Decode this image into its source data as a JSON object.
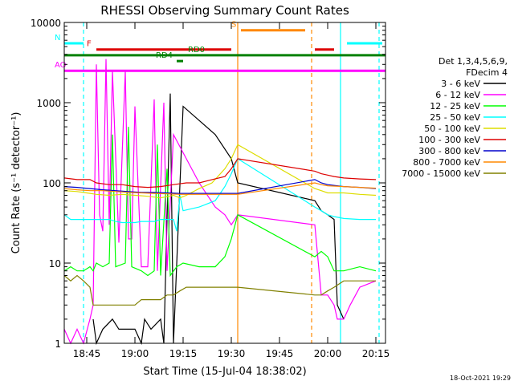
{
  "chart_data": {
    "type": "line",
    "title": "RHESSI Observing Summary Count Rates",
    "xlabel": "Start Time (15-Jul-04 18:38:02)",
    "ylabel": "Count Rate (s⁻¹ detector⁻¹)",
    "yscale": "log",
    "ylim": [
      1,
      10000
    ],
    "xlim_minutes": [
      38,
      138
    ],
    "x_ticks": [
      {
        "t": 45,
        "label": "18:45"
      },
      {
        "t": 60,
        "label": "19:00"
      },
      {
        "t": 75,
        "label": "19:15"
      },
      {
        "t": 90,
        "label": "19:30"
      },
      {
        "t": 105,
        "label": "19:45"
      },
      {
        "t": 120,
        "label": "20:00"
      },
      {
        "t": 135,
        "label": "20:15"
      }
    ],
    "y_ticks": [
      {
        "v": 1,
        "label": "1"
      },
      {
        "v": 10,
        "label": "10"
      },
      {
        "v": 100,
        "label": "100"
      },
      {
        "v": 1000,
        "label": "1000"
      },
      {
        "v": 10000,
        "label": "10000"
      }
    ],
    "legend": {
      "placement": "right",
      "header": [
        "Det 1,3,4,5,6,9,",
        "FDecim 4"
      ],
      "entries": [
        {
          "label": "3 - 6 keV",
          "color": "#000000"
        },
        {
          "label": "6 - 12 keV",
          "color": "#ff00ff"
        },
        {
          "label": "12 - 25 keV",
          "color": "#00ff00"
        },
        {
          "label": "25 - 50 keV",
          "color": "#00ffff"
        },
        {
          "label": "50 - 100 keV",
          "color": "#dddd00"
        },
        {
          "label": "100 - 300 keV",
          "color": "#dd0000"
        },
        {
          "label": "300 - 800 keV",
          "color": "#0000cc"
        },
        {
          "label": "800 - 7000 keV",
          "color": "#ff8800"
        },
        {
          "label": "7000 - 15000 keV",
          "color": "#808000"
        }
      ]
    },
    "series": [
      {
        "name": "3 - 6 keV",
        "color": "#000000",
        "points": [
          [
            47,
            2
          ],
          [
            48,
            1
          ],
          [
            50,
            1.5
          ],
          [
            53,
            2
          ],
          [
            55,
            1.5
          ],
          [
            57,
            1.5
          ],
          [
            60,
            1.5
          ],
          [
            62,
            1
          ],
          [
            63,
            2
          ],
          [
            65,
            1.5
          ],
          [
            68,
            2
          ],
          [
            69,
            1
          ],
          [
            71,
            1300
          ],
          [
            72,
            1
          ],
          [
            75,
            900
          ],
          [
            80,
            600
          ],
          [
            85,
            400
          ],
          [
            90,
            200
          ],
          [
            92,
            100
          ],
          [
            116,
            60
          ],
          [
            118,
            45
          ],
          [
            120,
            40
          ],
          [
            122,
            35
          ],
          [
            123,
            3
          ],
          [
            125,
            2
          ]
        ]
      },
      {
        "name": "6 - 12 keV",
        "color": "#ff00ff",
        "points": [
          [
            38,
            1.5
          ],
          [
            40,
            1
          ],
          [
            42,
            1.5
          ],
          [
            44,
            1
          ],
          [
            46,
            2
          ],
          [
            47,
            3
          ],
          [
            48,
            3000
          ],
          [
            49,
            40
          ],
          [
            50,
            25
          ],
          [
            51,
            3500
          ],
          [
            52,
            30
          ],
          [
            53,
            2500
          ],
          [
            55,
            18
          ],
          [
            57,
            2500
          ],
          [
            58,
            20
          ],
          [
            59,
            20
          ],
          [
            60,
            900
          ],
          [
            62,
            9
          ],
          [
            64,
            9
          ],
          [
            66,
            1100
          ],
          [
            67,
            8
          ],
          [
            69,
            1000
          ],
          [
            70,
            8
          ],
          [
            72,
            400
          ],
          [
            76,
            200
          ],
          [
            80,
            100
          ],
          [
            85,
            50
          ],
          [
            88,
            40
          ],
          [
            90,
            30
          ],
          [
            92,
            40
          ],
          [
            116,
            30
          ],
          [
            118,
            4
          ],
          [
            120,
            4
          ],
          [
            122,
            3
          ],
          [
            123,
            2
          ],
          [
            125,
            2
          ],
          [
            127,
            3
          ],
          [
            130,
            5
          ],
          [
            135,
            6
          ]
        ]
      },
      {
        "name": "12 - 25 keV",
        "color": "#00ff00",
        "points": [
          [
            38,
            8
          ],
          [
            40,
            9
          ],
          [
            42,
            8
          ],
          [
            44,
            8
          ],
          [
            46,
            9
          ],
          [
            47,
            8
          ],
          [
            48,
            10
          ],
          [
            50,
            9
          ],
          [
            52,
            10
          ],
          [
            53,
            400
          ],
          [
            54,
            9
          ],
          [
            57,
            10
          ],
          [
            58,
            500
          ],
          [
            59,
            9
          ],
          [
            62,
            8
          ],
          [
            64,
            7
          ],
          [
            66,
            8
          ],
          [
            67,
            300
          ],
          [
            68,
            7
          ],
          [
            70,
            150
          ],
          [
            71,
            7
          ],
          [
            73,
            9
          ],
          [
            75,
            10
          ],
          [
            80,
            9
          ],
          [
            85,
            9
          ],
          [
            88,
            12
          ],
          [
            90,
            20
          ],
          [
            92,
            40
          ],
          [
            116,
            12
          ],
          [
            118,
            14
          ],
          [
            120,
            12
          ],
          [
            122,
            8
          ],
          [
            125,
            8
          ],
          [
            130,
            9
          ],
          [
            135,
            8
          ]
        ]
      },
      {
        "name": "25 - 50 keV",
        "color": "#00ffff",
        "points": [
          [
            38,
            40
          ],
          [
            40,
            35
          ],
          [
            42,
            35
          ],
          [
            44,
            35
          ],
          [
            46,
            35
          ],
          [
            48,
            35
          ],
          [
            50,
            35
          ],
          [
            52,
            35
          ],
          [
            54,
            33
          ],
          [
            56,
            32
          ],
          [
            58,
            32
          ],
          [
            60,
            32
          ],
          [
            62,
            33
          ],
          [
            64,
            33
          ],
          [
            66,
            33
          ],
          [
            68,
            35
          ],
          [
            70,
            35
          ],
          [
            72,
            35
          ],
          [
            73,
            25
          ],
          [
            74,
            70
          ],
          [
            75,
            45
          ],
          [
            80,
            50
          ],
          [
            85,
            60
          ],
          [
            88,
            90
          ],
          [
            90,
            130
          ],
          [
            92,
            200
          ],
          [
            116,
            50
          ],
          [
            118,
            45
          ],
          [
            120,
            40
          ],
          [
            122,
            38
          ],
          [
            125,
            36
          ],
          [
            130,
            35
          ],
          [
            135,
            35
          ]
        ]
      },
      {
        "name": "50 - 100 keV",
        "color": "#dddd00",
        "points": [
          [
            38,
            80
          ],
          [
            42,
            78
          ],
          [
            45,
            75
          ],
          [
            48,
            72
          ],
          [
            52,
            70
          ],
          [
            56,
            72
          ],
          [
            60,
            70
          ],
          [
            64,
            68
          ],
          [
            68,
            65
          ],
          [
            72,
            70
          ],
          [
            74,
            65
          ],
          [
            76,
            70
          ],
          [
            80,
            85
          ],
          [
            84,
            100
          ],
          [
            88,
            150
          ],
          [
            90,
            200
          ],
          [
            92,
            300
          ],
          [
            116,
            85
          ],
          [
            118,
            80
          ],
          [
            120,
            75
          ],
          [
            125,
            75
          ],
          [
            130,
            72
          ],
          [
            135,
            70
          ]
        ]
      },
      {
        "name": "100 - 300 keV",
        "color": "#dd0000",
        "points": [
          [
            38,
            115
          ],
          [
            42,
            110
          ],
          [
            46,
            110
          ],
          [
            48,
            100
          ],
          [
            52,
            95
          ],
          [
            56,
            95
          ],
          [
            60,
            90
          ],
          [
            64,
            88
          ],
          [
            68,
            90
          ],
          [
            72,
            95
          ],
          [
            76,
            100
          ],
          [
            80,
            100
          ],
          [
            84,
            110
          ],
          [
            88,
            120
          ],
          [
            90,
            150
          ],
          [
            92,
            200
          ],
          [
            116,
            140
          ],
          [
            118,
            130
          ],
          [
            120,
            125
          ],
          [
            122,
            120
          ],
          [
            125,
            115
          ],
          [
            130,
            112
          ],
          [
            135,
            110
          ]
        ]
      },
      {
        "name": "300 - 800 keV",
        "color": "#0000cc",
        "points": [
          [
            38,
            90
          ],
          [
            42,
            88
          ],
          [
            46,
            85
          ],
          [
            50,
            82
          ],
          [
            54,
            80
          ],
          [
            58,
            78
          ],
          [
            62,
            76
          ],
          [
            66,
            76
          ],
          [
            70,
            75
          ],
          [
            74,
            74
          ],
          [
            78,
            74
          ],
          [
            82,
            74
          ],
          [
            86,
            74
          ],
          [
            90,
            74
          ],
          [
            92,
            74
          ],
          [
            116,
            110
          ],
          [
            118,
            100
          ],
          [
            120,
            95
          ],
          [
            125,
            90
          ],
          [
            130,
            88
          ],
          [
            135,
            85
          ]
        ]
      },
      {
        "name": "800 - 7000 keV",
        "color": "#ff8800",
        "points": [
          [
            38,
            85
          ],
          [
            42,
            82
          ],
          [
            46,
            80
          ],
          [
            50,
            80
          ],
          [
            54,
            78
          ],
          [
            58,
            76
          ],
          [
            62,
            75
          ],
          [
            66,
            74
          ],
          [
            70,
            73
          ],
          [
            74,
            72
          ],
          [
            78,
            72
          ],
          [
            82,
            72
          ],
          [
            86,
            72
          ],
          [
            90,
            72
          ],
          [
            92,
            72
          ],
          [
            116,
            100
          ],
          [
            118,
            95
          ],
          [
            120,
            92
          ],
          [
            125,
            90
          ],
          [
            130,
            88
          ],
          [
            135,
            86
          ]
        ]
      },
      {
        "name": "7000 - 15000 keV",
        "color": "#808000",
        "points": [
          [
            38,
            7
          ],
          [
            40,
            6
          ],
          [
            42,
            7
          ],
          [
            44,
            6
          ],
          [
            46,
            5
          ],
          [
            47,
            3
          ],
          [
            48,
            3
          ],
          [
            50,
            3
          ],
          [
            52,
            3
          ],
          [
            54,
            3
          ],
          [
            56,
            3
          ],
          [
            58,
            3
          ],
          [
            60,
            3
          ],
          [
            62,
            3.5
          ],
          [
            64,
            3.5
          ],
          [
            66,
            3.5
          ],
          [
            68,
            3.5
          ],
          [
            70,
            4
          ],
          [
            72,
            4
          ],
          [
            74,
            4.5
          ],
          [
            76,
            5
          ],
          [
            78,
            5
          ],
          [
            80,
            5
          ],
          [
            82,
            5
          ],
          [
            84,
            5
          ],
          [
            86,
            5
          ],
          [
            88,
            5
          ],
          [
            90,
            5
          ],
          [
            92,
            5
          ],
          [
            116,
            4
          ],
          [
            118,
            4
          ],
          [
            120,
            4.5
          ],
          [
            122,
            5
          ],
          [
            125,
            6
          ],
          [
            130,
            6
          ],
          [
            135,
            6
          ]
        ]
      }
    ],
    "annotations": [
      {
        "label": "N",
        "kind": "bar",
        "color": "#00ffff",
        "start": 38,
        "end": 44,
        "level": 5500
      },
      {
        "label": "",
        "kind": "bar",
        "color": "#00ffff",
        "start": 126,
        "end": 137,
        "level": 5500
      },
      {
        "label": "S",
        "kind": "bar",
        "color": "#ff8800",
        "start": 93,
        "end": 113,
        "level": 8000
      },
      {
        "label": "F",
        "kind": "bar",
        "color": "#dd0000",
        "start": 48,
        "end": 90,
        "level": 4600
      },
      {
        "label": "",
        "kind": "bar",
        "color": "#dd0000",
        "start": 116,
        "end": 122,
        "level": 4600
      },
      {
        "label": "RD0",
        "kind": "bar",
        "color": "#008000",
        "start": 38,
        "end": 138,
        "level": 3900
      },
      {
        "label": "RD4",
        "kind": "bar",
        "color": "#008000",
        "start": 73,
        "end": 75,
        "level": 3300
      },
      {
        "label": "AO",
        "kind": "bar",
        "color": "#ff00ff",
        "start": 38,
        "end": 138,
        "level": 2500
      }
    ],
    "vertical_markers": [
      {
        "t": 44,
        "color": "#00ffff",
        "style": "dashed"
      },
      {
        "t": 92,
        "color": "#ff8800",
        "style": "solid"
      },
      {
        "t": 115,
        "color": "#ff8800",
        "style": "dashed"
      },
      {
        "t": 124,
        "color": "#00ffff",
        "style": "solid"
      },
      {
        "t": 136,
        "color": "#00ffff",
        "style": "dashed"
      }
    ],
    "grid": false
  },
  "footer": {
    "timestamp": "18-Oct-2021 19:29"
  }
}
